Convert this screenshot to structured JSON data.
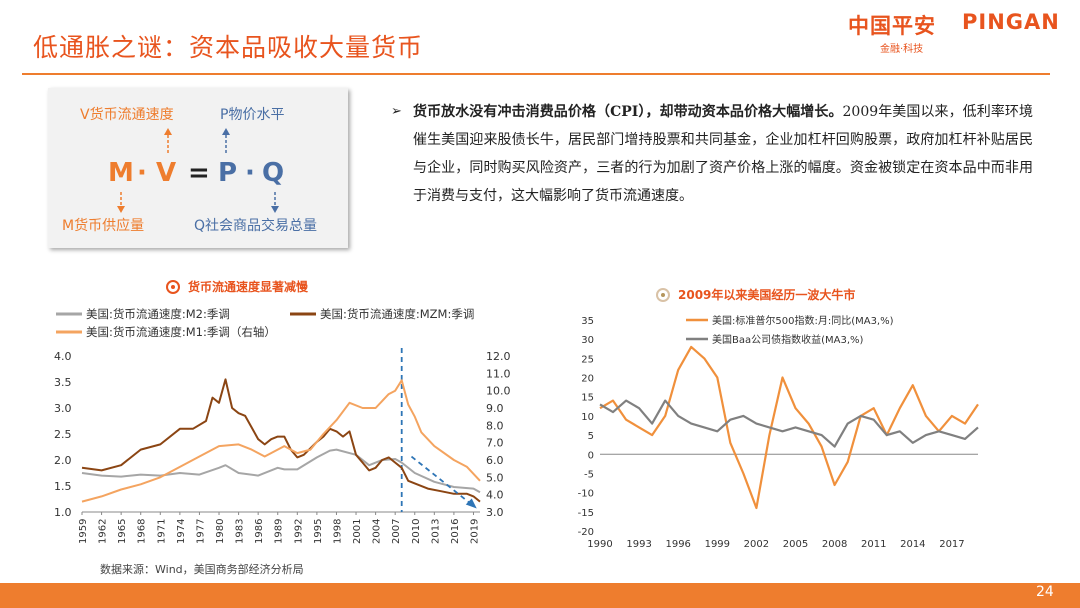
{
  "header": {
    "title": "低通胀之谜：资本品吸收大量货币",
    "logo_cn": "中国平安",
    "logo_en": "PINGAN",
    "logo_sub": "金融·科技"
  },
  "equation": {
    "top_left": "V货币流通速度",
    "top_right": "P物价水平",
    "m": "M",
    "v": "V",
    "equals": "=",
    "p": "P",
    "q": "Q",
    "dot": "·",
    "bottom_left": "M货币供应量",
    "bottom_right": "Q社会商品交易总量"
  },
  "paragraph": {
    "bullet": "➢",
    "bold": "货币放水没有冲击消费品价格（CPI），却带动资本品价格大幅增长。",
    "text": "2009年美国以来，低利率环境催生美国迎来股债长牛，居民部门增持股票和共同基金，企业加杠杆回购股票，政府加杠杆补贴居民与企业，同时购买风险资产，三者的行为加剧了资产价格上涨的幅度。资金被锁定在资本品中而非用于消费与支付，这大幅影响了货币流通速度。"
  },
  "left_chart_title": "货币流通速度显著减慢",
  "right_chart_title": "2009年以来美国经历一波大牛市",
  "source": "数据来源：Wind，美国商务部经济分析局",
  "page_number": "24",
  "colors": {
    "accent": "#e8541e",
    "bar": "#ee7d2e",
    "m2": "#a6a6a6",
    "mzm": "#8b4513",
    "m1": "#f4a460",
    "sp500": "#f0903c",
    "baa": "#808080",
    "trend": "#2e75b6"
  },
  "chart_data": [
    {
      "type": "line",
      "legend": [
        "美国:货币流通速度:M2:季调",
        "美国:货币流通速度:MZM:季调",
        "美国:货币流通速度:M1:季调（右轴）"
      ],
      "x_ticks": [
        "1959",
        "1962",
        "1965",
        "1968",
        "1971",
        "1974",
        "1977",
        "1980",
        "1983",
        "1986",
        "1989",
        "1992",
        "1995",
        "1998",
        "2001",
        "2004",
        "2007",
        "2010",
        "2013",
        "2016",
        "2019"
      ],
      "x_range": [
        1959,
        2020
      ],
      "ylim_left": [
        1.0,
        4.0
      ],
      "y_ticks_left": [
        "1.0",
        "1.5",
        "2.0",
        "2.5",
        "3.0",
        "3.5",
        "4.0"
      ],
      "ylim_right": [
        3.0,
        12.0
      ],
      "y_ticks_right": [
        "3.0",
        "4.0",
        "5.0",
        "6.0",
        "7.0",
        "8.0",
        "9.0",
        "10.0",
        "11.0",
        "12.0"
      ],
      "series": [
        {
          "name": "美国:货币流通速度:M2:季调",
          "axis": "left",
          "x": [
            1959,
            1962,
            1965,
            1968,
            1971,
            1974,
            1977,
            1980,
            1981,
            1983,
            1986,
            1989,
            1990,
            1992,
            1995,
            1997,
            1998,
            2001,
            2003,
            2005,
            2007,
            2008,
            2010,
            2013,
            2016,
            2019,
            2020
          ],
          "y": [
            1.75,
            1.7,
            1.68,
            1.72,
            1.7,
            1.75,
            1.72,
            1.85,
            1.9,
            1.75,
            1.7,
            1.85,
            1.82,
            1.82,
            2.05,
            2.18,
            2.2,
            2.1,
            1.9,
            2.0,
            2.02,
            1.95,
            1.75,
            1.58,
            1.48,
            1.45,
            1.38
          ]
        },
        {
          "name": "美国:货币流通速度:MZM:季调",
          "axis": "left",
          "x": [
            1959,
            1962,
            1965,
            1968,
            1971,
            1974,
            1976,
            1978,
            1979,
            1980,
            1981,
            1982,
            1983,
            1984,
            1986,
            1987,
            1988,
            1989,
            1990,
            1991,
            1992,
            1993,
            1995,
            1996,
            1997,
            1998,
            1999,
            2000,
            2001,
            2002,
            2003,
            2004,
            2005,
            2006,
            2007,
            2008,
            2009,
            2010,
            2012,
            2014,
            2016,
            2018,
            2019,
            2020
          ],
          "y": [
            1.85,
            1.8,
            1.9,
            2.2,
            2.3,
            2.6,
            2.6,
            2.75,
            3.2,
            3.1,
            3.55,
            3.0,
            2.9,
            2.85,
            2.4,
            2.3,
            2.4,
            2.45,
            2.45,
            2.2,
            2.05,
            2.1,
            2.35,
            2.45,
            2.6,
            2.55,
            2.45,
            2.55,
            2.1,
            1.95,
            1.8,
            1.85,
            2.0,
            2.05,
            1.95,
            1.85,
            1.6,
            1.55,
            1.45,
            1.4,
            1.35,
            1.35,
            1.3,
            1.2
          ]
        },
        {
          "name": "美国:货币流通速度:M1:季调（右轴）",
          "axis": "right",
          "x": [
            1959,
            1962,
            1965,
            1968,
            1971,
            1974,
            1977,
            1980,
            1983,
            1985,
            1987,
            1990,
            1992,
            1994,
            1996,
            1998,
            2000,
            2002,
            2004,
            2006,
            2007,
            2008,
            2009,
            2010,
            2011,
            2013,
            2016,
            2018,
            2020
          ],
          "y": [
            3.6,
            3.9,
            4.3,
            4.6,
            5.0,
            5.6,
            6.2,
            6.8,
            6.9,
            6.6,
            6.2,
            6.8,
            6.4,
            6.6,
            7.5,
            8.3,
            9.3,
            9.0,
            9.0,
            9.8,
            10.0,
            10.6,
            9.2,
            8.5,
            7.6,
            6.8,
            6.0,
            5.6,
            4.8
          ]
        }
      ],
      "trend_marker": {
        "x": 2008
      },
      "trend_line": {
        "x": [
          2009.5,
          2019.5
        ],
        "y": [
          6.2,
          3.2
        ],
        "axis": "right"
      }
    },
    {
      "type": "line",
      "legend": [
        "美国:标准普尔500指数:月:同比(MA3,%)",
        "美国Baa公司债指数收益(MA3,%)"
      ],
      "x_ticks": [
        "1990",
        "1993",
        "1996",
        "1999",
        "2002",
        "2005",
        "2008",
        "2011",
        "2014",
        "2017"
      ],
      "x_range": [
        1990,
        2019
      ],
      "ylim": [
        -20,
        35
      ],
      "y_ticks": [
        "35",
        "30",
        "25",
        "20",
        "15",
        "10",
        "5",
        "0",
        "-5",
        "-10",
        "-15",
        "-20"
      ],
      "series": [
        {
          "name": "美国:标准普尔500指数:月:同比(MA3,%)",
          "x": [
            1990,
            1991,
            1992,
            1993,
            1994,
            1995,
            1996,
            1997,
            1998,
            1999,
            2000,
            2001,
            2002,
            2003,
            2004,
            2005,
            2006,
            2007,
            2008,
            2009,
            2010,
            2011,
            2012,
            2013,
            2014,
            2015,
            2016,
            2017,
            2018,
            2019
          ],
          "y": [
            12,
            14,
            9,
            7,
            5,
            10,
            22,
            28,
            25,
            20,
            3,
            -5,
            -14,
            5,
            20,
            12,
            8,
            2,
            -8,
            -2,
            10,
            12,
            5,
            12,
            18,
            10,
            6,
            10,
            8,
            13
          ]
        },
        {
          "name": "美国Baa公司债指数收益(MA3,%)",
          "x": [
            1990,
            1991,
            1992,
            1993,
            1994,
            1995,
            1996,
            1997,
            1998,
            1999,
            2000,
            2001,
            2002,
            2003,
            2004,
            2005,
            2006,
            2007,
            2008,
            2009,
            2010,
            2011,
            2012,
            2013,
            2014,
            2015,
            2016,
            2017,
            2018,
            2019
          ],
          "y": [
            13,
            11,
            14,
            12,
            8,
            14,
            10,
            8,
            7,
            6,
            9,
            10,
            8,
            7,
            6,
            7,
            6,
            5,
            2,
            8,
            10,
            9,
            5,
            6,
            3,
            5,
            6,
            5,
            4,
            7
          ]
        }
      ]
    }
  ]
}
